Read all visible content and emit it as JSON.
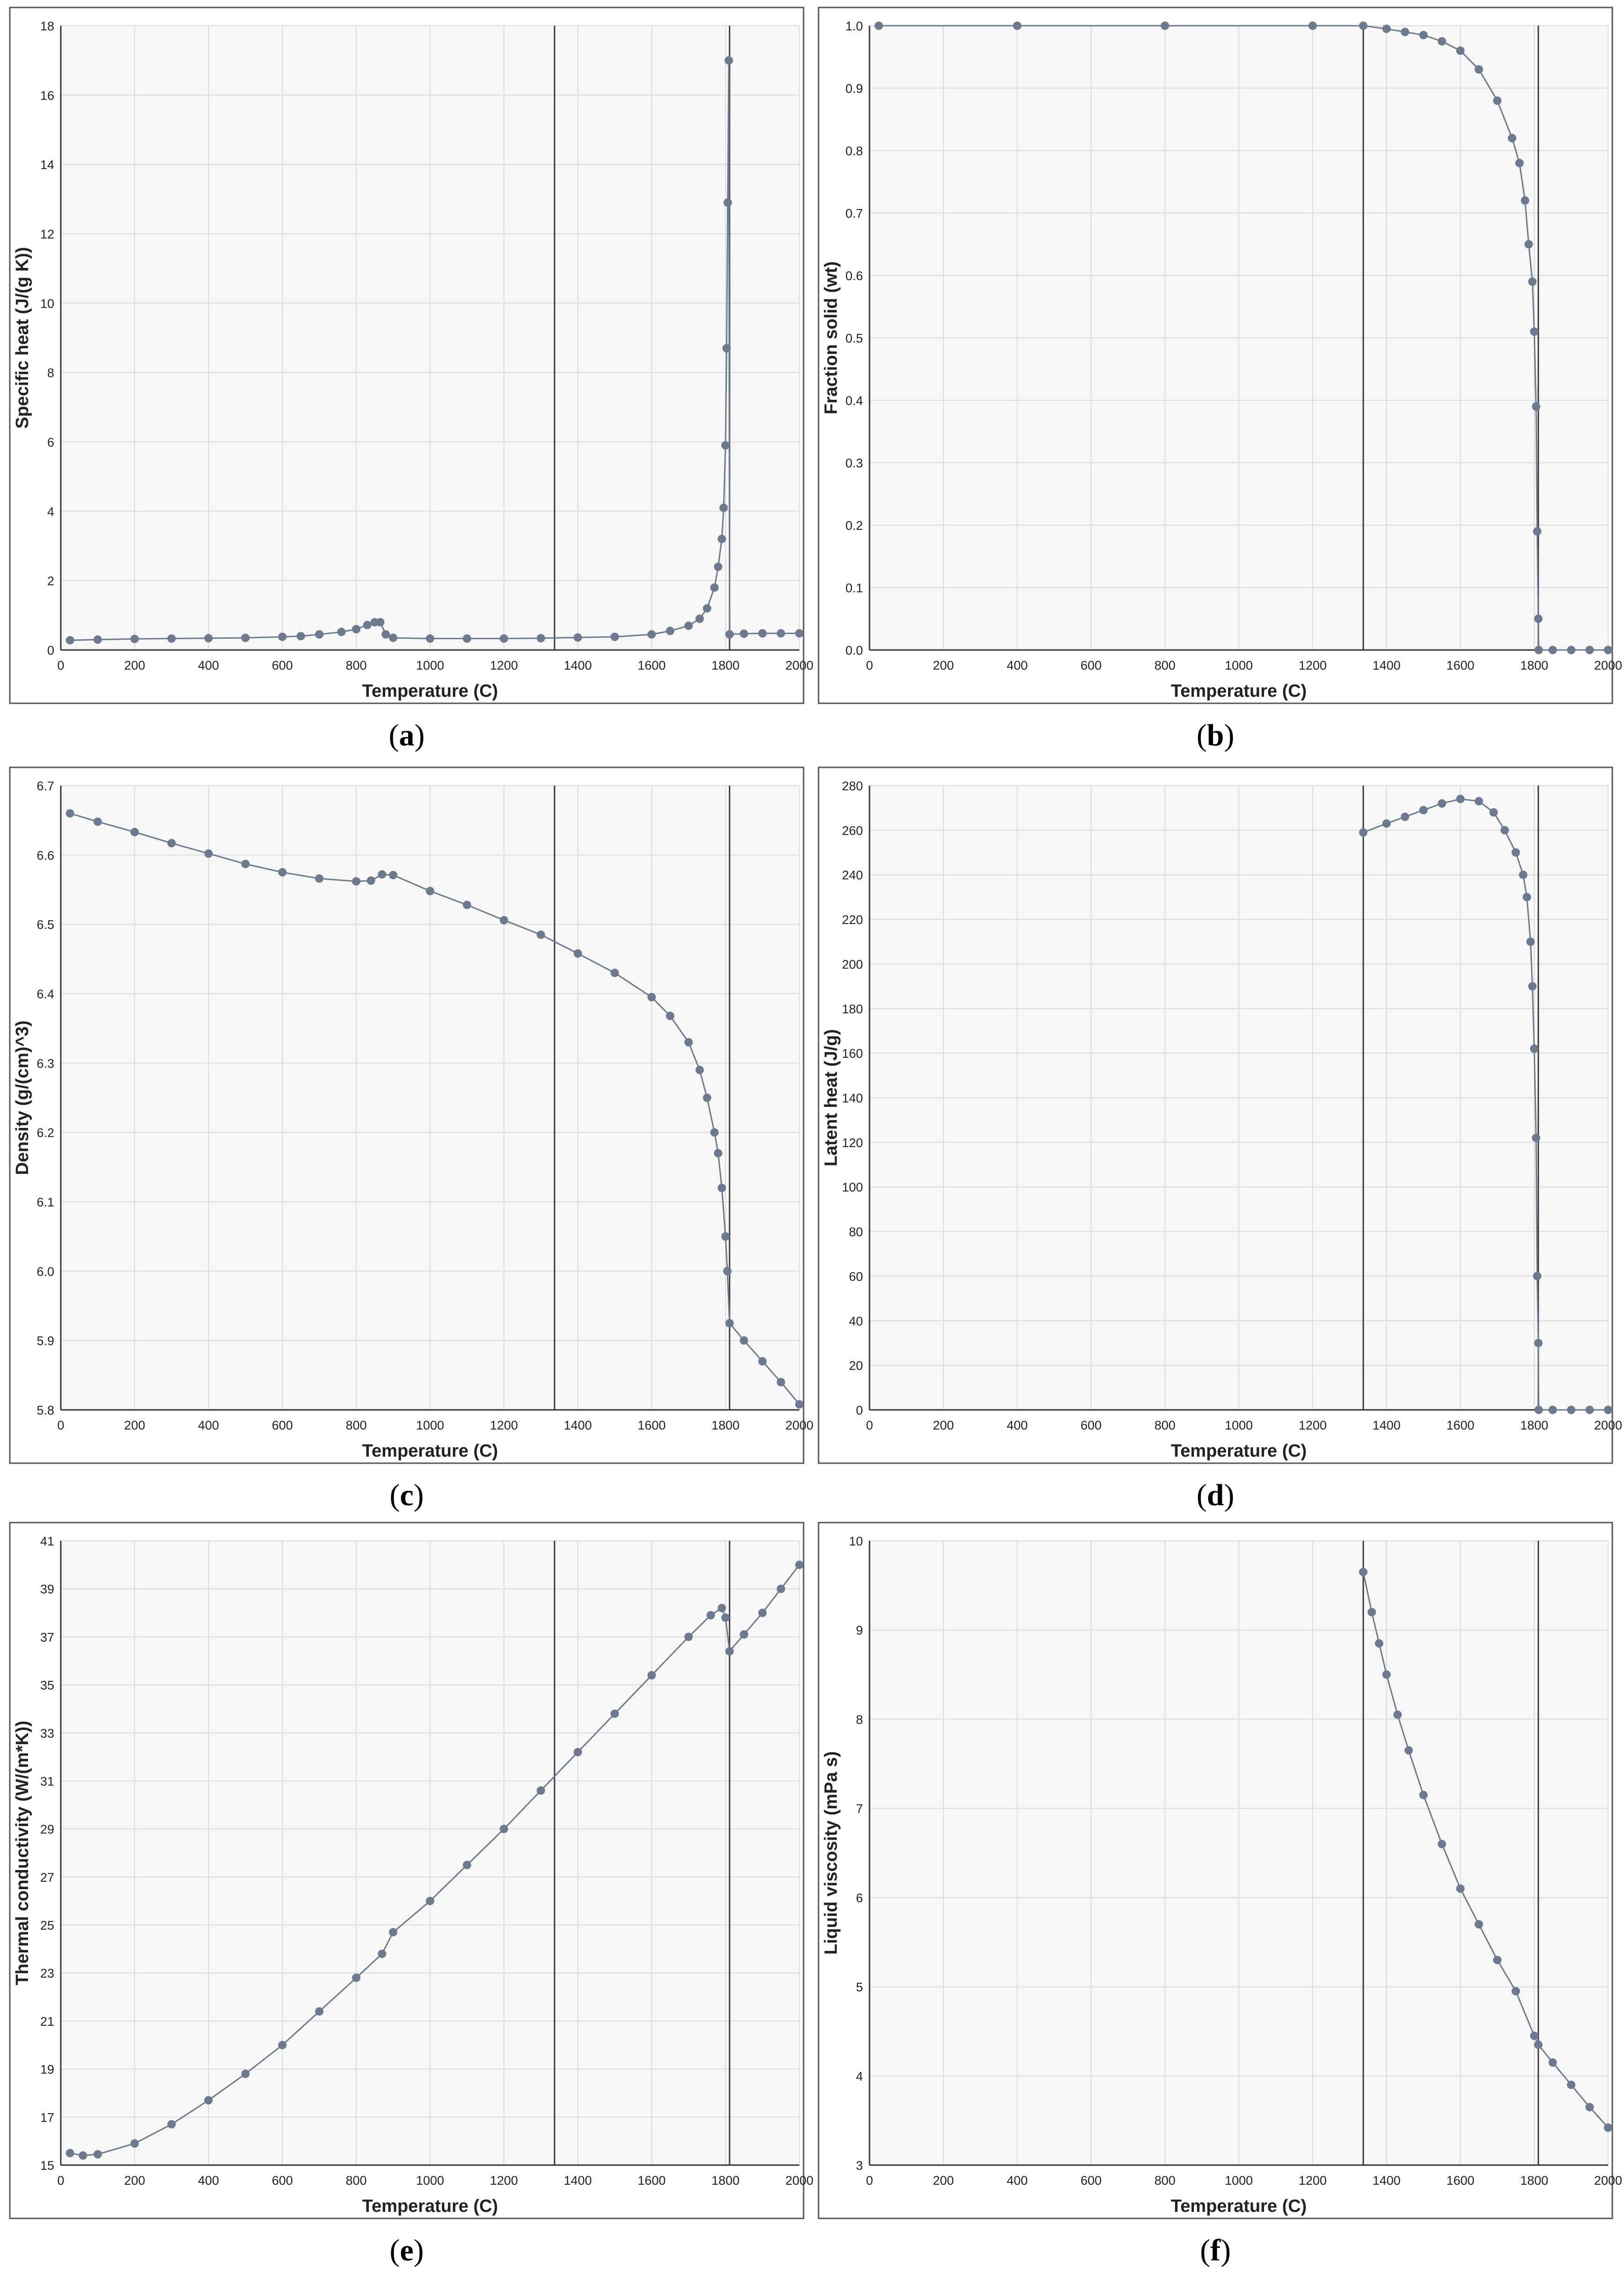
{
  "panels": [
    {
      "label": "a",
      "caption_open": "(",
      "caption_close": ")"
    },
    {
      "label": "b",
      "caption_open": "(",
      "caption_close": ")"
    },
    {
      "label": "c",
      "caption_open": "(",
      "caption_close": ")"
    },
    {
      "label": "d",
      "caption_open": "(",
      "caption_close": ")"
    },
    {
      "label": "e",
      "caption_open": "(",
      "caption_close": ")"
    },
    {
      "label": "f",
      "caption_open": "(",
      "caption_close": ")"
    }
  ],
  "style": {
    "series_color": "#6b7a8f",
    "line_color": "#3a3a3a",
    "grid_color": "#dcdcdc",
    "plot_bg": "#f7f7f7",
    "frame_color": "#555555"
  },
  "chart_data": [
    {
      "type": "scatter",
      "xlabel": "Temperature (C)",
      "ylabel": "Specific heat (J/(g K))",
      "xlim": [
        0,
        2000
      ],
      "ylim": [
        0,
        18
      ],
      "xticks": [
        0,
        200,
        400,
        600,
        800,
        1000,
        1200,
        1400,
        1600,
        1800,
        2000
      ],
      "yticks": [
        0,
        2,
        4,
        6,
        8,
        10,
        12,
        14,
        16,
        18
      ],
      "xtick_labels": [
        "0",
        "200",
        "400",
        "600",
        "800",
        "1000",
        "1200",
        "1400",
        "1600",
        "1800",
        "2000"
      ],
      "ytick_labels": [
        "0",
        "2",
        "4",
        "6",
        "8",
        "10",
        "12",
        "14",
        "16",
        "18"
      ],
      "vlines": [
        1337,
        1811
      ],
      "series": [
        {
          "values": [
            [
              25,
              0.28
            ],
            [
              100,
              0.3
            ],
            [
              200,
              0.32
            ],
            [
              300,
              0.33
            ],
            [
              400,
              0.34
            ],
            [
              500,
              0.35
            ],
            [
              600,
              0.38
            ],
            [
              650,
              0.4
            ],
            [
              700,
              0.45
            ],
            [
              760,
              0.52
            ],
            [
              800,
              0.6
            ],
            [
              830,
              0.72
            ],
            [
              850,
              0.8
            ],
            [
              865,
              0.8
            ],
            [
              880,
              0.45
            ],
            [
              900,
              0.35
            ],
            [
              1000,
              0.33
            ],
            [
              1100,
              0.33
            ],
            [
              1200,
              0.33
            ],
            [
              1300,
              0.34
            ],
            [
              1400,
              0.36
            ],
            [
              1500,
              0.38
            ],
            [
              1600,
              0.45
            ],
            [
              1650,
              0.55
            ],
            [
              1700,
              0.7
            ],
            [
              1730,
              0.9
            ],
            [
              1750,
              1.2
            ],
            [
              1770,
              1.8
            ],
            [
              1780,
              2.4
            ],
            [
              1790,
              3.2
            ],
            [
              1795,
              4.1
            ],
            [
              1800,
              5.9
            ],
            [
              1803,
              8.7
            ],
            [
              1806,
              12.9
            ],
            [
              1809,
              17.0
            ],
            [
              1811,
              0.45
            ],
            [
              1850,
              0.47
            ],
            [
              1900,
              0.48
            ],
            [
              1950,
              0.48
            ],
            [
              2000,
              0.48
            ]
          ]
        }
      ]
    },
    {
      "type": "scatter",
      "xlabel": "Temperature (C)",
      "ylabel": "Fraction solid (wt)",
      "xlim": [
        0,
        2000
      ],
      "ylim": [
        0,
        1
      ],
      "xticks": [
        0,
        200,
        400,
        600,
        800,
        1000,
        1200,
        1400,
        1600,
        1800,
        2000
      ],
      "yticks": [
        0,
        0.1,
        0.2,
        0.3,
        0.4,
        0.5,
        0.6,
        0.7,
        0.8,
        0.9,
        1.0
      ],
      "xtick_labels": [
        "0",
        "200",
        "400",
        "600",
        "800",
        "1000",
        "1200",
        "1400",
        "1600",
        "1800",
        "2000"
      ],
      "ytick_labels": [
        "0.0",
        "0.1",
        "0.2",
        "0.3",
        "0.4",
        "0.5",
        "0.6",
        "0.7",
        "0.8",
        "0.9",
        "1.0"
      ],
      "vlines": [
        1337,
        1811
      ],
      "series": [
        {
          "values": [
            [
              25,
              1.0
            ],
            [
              400,
              1.0
            ],
            [
              800,
              1.0
            ],
            [
              1200,
              1.0
            ],
            [
              1337,
              1.0
            ],
            [
              1400,
              0.995
            ],
            [
              1450,
              0.99
            ],
            [
              1500,
              0.985
            ],
            [
              1550,
              0.975
            ],
            [
              1600,
              0.96
            ],
            [
              1650,
              0.93
            ],
            [
              1700,
              0.88
            ],
            [
              1740,
              0.82
            ],
            [
              1760,
              0.78
            ],
            [
              1775,
              0.72
            ],
            [
              1785,
              0.65
            ],
            [
              1795,
              0.59
            ],
            [
              1800,
              0.51
            ],
            [
              1805,
              0.39
            ],
            [
              1808,
              0.19
            ],
            [
              1811,
              0.05
            ],
            [
              1812,
              0.0
            ],
            [
              1850,
              0.0
            ],
            [
              1900,
              0.0
            ],
            [
              1950,
              0.0
            ],
            [
              2000,
              0.0
            ]
          ]
        }
      ]
    },
    {
      "type": "scatter",
      "xlabel": "Temperature (C)",
      "ylabel": "Density (g/(cm)^3)",
      "xlim": [
        0,
        2000
      ],
      "ylim": [
        5.8,
        6.7
      ],
      "xticks": [
        0,
        200,
        400,
        600,
        800,
        1000,
        1200,
        1400,
        1600,
        1800,
        2000
      ],
      "yticks": [
        5.8,
        5.9,
        6.0,
        6.1,
        6.2,
        6.3,
        6.4,
        6.5,
        6.6,
        6.7
      ],
      "xtick_labels": [
        "0",
        "200",
        "400",
        "600",
        "800",
        "1000",
        "1200",
        "1400",
        "1600",
        "1800",
        "2000"
      ],
      "ytick_labels": [
        "5.8",
        "5.9",
        "6.0",
        "6.1",
        "6.2",
        "6.3",
        "6.4",
        "6.5",
        "6.6",
        "6.7"
      ],
      "vlines": [
        1337,
        1811
      ],
      "series": [
        {
          "values": [
            [
              25,
              6.66
            ],
            [
              100,
              6.648
            ],
            [
              200,
              6.633
            ],
            [
              300,
              6.617
            ],
            [
              400,
              6.602
            ],
            [
              500,
              6.587
            ],
            [
              600,
              6.575
            ],
            [
              700,
              6.566
            ],
            [
              800,
              6.562
            ],
            [
              840,
              6.563
            ],
            [
              870,
              6.572
            ],
            [
              900,
              6.571
            ],
            [
              1000,
              6.548
            ],
            [
              1100,
              6.528
            ],
            [
              1200,
              6.506
            ],
            [
              1300,
              6.485
            ],
            [
              1400,
              6.458
            ],
            [
              1500,
              6.43
            ],
            [
              1600,
              6.395
            ],
            [
              1650,
              6.368
            ],
            [
              1700,
              6.33
            ],
            [
              1730,
              6.29
            ],
            [
              1750,
              6.25
            ],
            [
              1770,
              6.2
            ],
            [
              1780,
              6.17
            ],
            [
              1790,
              6.12
            ],
            [
              1800,
              6.05
            ],
            [
              1805,
              6.0
            ],
            [
              1811,
              5.925
            ],
            [
              1850,
              5.9
            ],
            [
              1900,
              5.87
            ],
            [
              1950,
              5.84
            ],
            [
              2000,
              5.808
            ]
          ]
        }
      ]
    },
    {
      "type": "scatter",
      "xlabel": "Temperature (C)",
      "ylabel": "Latent heat (J/g)",
      "xlim": [
        0,
        2000
      ],
      "ylim": [
        0,
        280
      ],
      "xticks": [
        0,
        200,
        400,
        600,
        800,
        1000,
        1200,
        1400,
        1600,
        1800,
        2000
      ],
      "yticks": [
        0,
        20,
        40,
        60,
        80,
        100,
        120,
        140,
        160,
        180,
        200,
        220,
        240,
        260,
        280
      ],
      "xtick_labels": [
        "0",
        "200",
        "400",
        "600",
        "800",
        "1000",
        "1200",
        "1400",
        "1600",
        "1800",
        "2000"
      ],
      "ytick_labels": [
        "0",
        "20",
        "40",
        "60",
        "80",
        "100",
        "120",
        "140",
        "160",
        "180",
        "200",
        "220",
        "240",
        "260",
        "280"
      ],
      "vlines": [
        1337,
        1811
      ],
      "series": [
        {
          "values": [
            [
              1337,
              259
            ],
            [
              1400,
              263
            ],
            [
              1450,
              266
            ],
            [
              1500,
              269
            ],
            [
              1550,
              272
            ],
            [
              1600,
              274
            ],
            [
              1650,
              273
            ],
            [
              1690,
              268
            ],
            [
              1720,
              260
            ],
            [
              1750,
              250
            ],
            [
              1770,
              240
            ],
            [
              1780,
              230
            ],
            [
              1790,
              210
            ],
            [
              1795,
              190
            ],
            [
              1800,
              162
            ],
            [
              1805,
              122
            ],
            [
              1808,
              60
            ],
            [
              1811,
              30
            ],
            [
              1812,
              0
            ],
            [
              1850,
              0
            ],
            [
              1900,
              0
            ],
            [
              1950,
              0
            ],
            [
              2000,
              0
            ]
          ]
        }
      ]
    },
    {
      "type": "scatter",
      "xlabel": "Temperature (C)",
      "ylabel": "Thermal conductivity (W/(m*K))",
      "xlim": [
        0,
        2000
      ],
      "ylim": [
        15,
        41
      ],
      "xticks": [
        0,
        200,
        400,
        600,
        800,
        1000,
        1200,
        1400,
        1600,
        1800,
        2000
      ],
      "yticks": [
        15,
        17,
        19,
        21,
        23,
        25,
        27,
        29,
        31,
        33,
        35,
        37,
        39,
        41
      ],
      "xtick_labels": [
        "0",
        "200",
        "400",
        "600",
        "800",
        "1000",
        "1200",
        "1400",
        "1600",
        "1800",
        "2000"
      ],
      "ytick_labels": [
        "15",
        "17",
        "19",
        "21",
        "23",
        "25",
        "27",
        "29",
        "31",
        "33",
        "35",
        "37",
        "39",
        "41"
      ],
      "vlines": [
        1337,
        1811
      ],
      "series": [
        {
          "values": [
            [
              25,
              15.5
            ],
            [
              60,
              15.4
            ],
            [
              100,
              15.45
            ],
            [
              200,
              15.9
            ],
            [
              300,
              16.7
            ],
            [
              400,
              17.7
            ],
            [
              500,
              18.8
            ],
            [
              600,
              20.0
            ],
            [
              700,
              21.4
            ],
            [
              800,
              22.8
            ],
            [
              870,
              23.8
            ],
            [
              900,
              24.7
            ],
            [
              1000,
              26.0
            ],
            [
              1100,
              27.5
            ],
            [
              1200,
              29.0
            ],
            [
              1300,
              30.6
            ],
            [
              1400,
              32.2
            ],
            [
              1500,
              33.8
            ],
            [
              1600,
              35.4
            ],
            [
              1700,
              37.0
            ],
            [
              1760,
              37.9
            ],
            [
              1790,
              38.2
            ],
            [
              1800,
              37.8
            ],
            [
              1811,
              36.4
            ],
            [
              1850,
              37.1
            ],
            [
              1900,
              38.0
            ],
            [
              1950,
              39.0
            ],
            [
              2000,
              40.0
            ]
          ]
        }
      ]
    },
    {
      "type": "scatter",
      "xlabel": "Temperature (C)",
      "ylabel": "Liquid viscosity (mPa s)",
      "xlim": [
        0,
        2000
      ],
      "ylim": [
        3,
        10
      ],
      "xticks": [
        0,
        200,
        400,
        600,
        800,
        1000,
        1200,
        1400,
        1600,
        1800,
        2000
      ],
      "yticks": [
        3,
        4,
        5,
        6,
        7,
        8,
        9,
        10
      ],
      "xtick_labels": [
        "0",
        "200",
        "400",
        "600",
        "800",
        "1000",
        "1200",
        "1400",
        "1600",
        "1800",
        "2000"
      ],
      "ytick_labels": [
        "3",
        "4",
        "5",
        "6",
        "7",
        "8",
        "9",
        "10"
      ],
      "vlines": [
        1337,
        1811
      ],
      "series": [
        {
          "values": [
            [
              1337,
              9.65
            ],
            [
              1360,
              9.2
            ],
            [
              1380,
              8.85
            ],
            [
              1400,
              8.5
            ],
            [
              1430,
              8.05
            ],
            [
              1460,
              7.65
            ],
            [
              1500,
              7.15
            ],
            [
              1550,
              6.6
            ],
            [
              1600,
              6.1
            ],
            [
              1650,
              5.7
            ],
            [
              1700,
              5.3
            ],
            [
              1750,
              4.95
            ],
            [
              1800,
              4.45
            ],
            [
              1811,
              4.35
            ],
            [
              1850,
              4.15
            ],
            [
              1900,
              3.9
            ],
            [
              1950,
              3.65
            ],
            [
              2000,
              3.42
            ]
          ]
        }
      ]
    }
  ]
}
